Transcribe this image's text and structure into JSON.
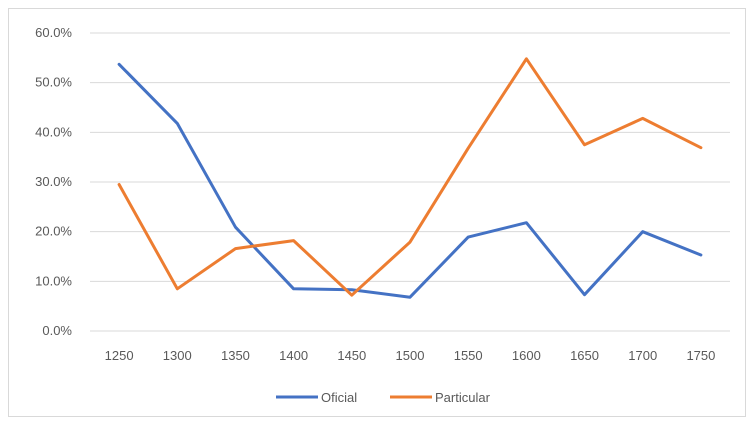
{
  "chart_data": {
    "type": "line",
    "title": "",
    "xlabel": "",
    "ylabel": "",
    "x": [
      "1250",
      "1300",
      "1350",
      "1400",
      "1450",
      "1500",
      "1550",
      "1600",
      "1650",
      "1700",
      "1750"
    ],
    "ylim": [
      0,
      0.6
    ],
    "yticks": [
      "0.0%",
      "10.0%",
      "20.0%",
      "30.0%",
      "40.0%",
      "50.0%",
      "60.0%"
    ],
    "grid": "horizontal",
    "legend": "bottom",
    "series": [
      {
        "name": "Oficial",
        "color": "#4472C4",
        "values": [
          0.537,
          0.418,
          0.209,
          0.085,
          0.083,
          0.068,
          0.189,
          0.218,
          0.073,
          0.2,
          0.153
        ]
      },
      {
        "name": "Particular",
        "color": "#ED7D31",
        "values": [
          0.295,
          0.085,
          0.166,
          0.182,
          0.072,
          0.179,
          0.368,
          0.548,
          0.375,
          0.428,
          0.369
        ]
      }
    ]
  }
}
